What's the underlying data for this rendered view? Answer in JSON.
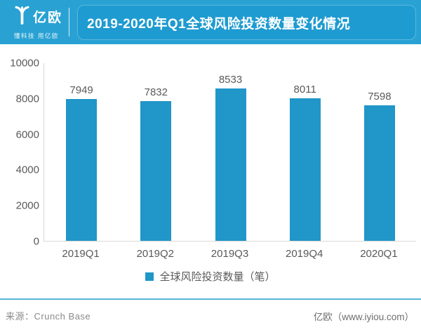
{
  "header": {
    "brand": "亿欧",
    "tagline": "懂科技 用亿欧",
    "title": "2019-2020年Q1全球风险投资数量变化情况"
  },
  "chart_data": {
    "type": "bar",
    "title": "2019-2020年Q1全球风险投资数量变化情况",
    "categories": [
      "2019Q1",
      "2019Q2",
      "2019Q3",
      "2019Q4",
      "2020Q1"
    ],
    "values": [
      7949,
      7832,
      8533,
      8011,
      7598
    ],
    "ylim": [
      0,
      10000
    ],
    "yticks": [
      0,
      2000,
      4000,
      6000,
      8000,
      10000
    ],
    "xlabel": "",
    "ylabel": "",
    "grid": false,
    "value_labels": true,
    "legend_label": "全球风险投资数量（笔）",
    "legend_position": "bottom",
    "bar_color": "#2196C8"
  },
  "footer": {
    "source": "来源：Crunch Base",
    "credit": "亿欧（www.iyiou.com）"
  },
  "colors": {
    "header_bg": "#29A2D3",
    "title_box_bg": "#1E9BD0",
    "bar": "#2196C8",
    "axis_line": "#D9D9D9",
    "label_text": "#595959",
    "footer_rule": "#59B6DA",
    "footer_text": "#8A8A8A"
  }
}
